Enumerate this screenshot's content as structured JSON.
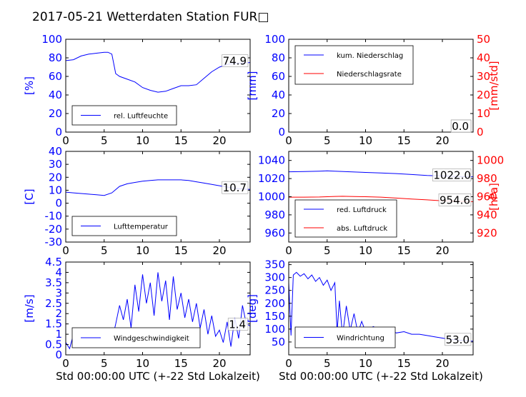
{
  "title": "2017-05-21 Wetterdaten Station FUR□",
  "colors": {
    "blue": "#0000ff",
    "red": "#ff0000",
    "frame": "#000000"
  },
  "chart_data": [
    {
      "id": "humidity",
      "type": "line",
      "xlim": [
        0,
        24
      ],
      "xticks": [
        0,
        5,
        10,
        15,
        20
      ],
      "ylim": [
        0,
        100
      ],
      "yticks": [
        0,
        20,
        40,
        60,
        80,
        100
      ],
      "ylabel": "[%]",
      "last_value": "74.9",
      "series": [
        {
          "name": "rel. Luftfeuchte",
          "color": "#0000ff",
          "x": [
            0,
            1,
            2,
            3,
            4,
            5,
            5.5,
            6,
            6.5,
            7,
            8,
            9,
            10,
            11,
            12,
            13,
            14,
            15,
            16,
            17,
            18,
            19,
            20,
            21,
            22,
            23,
            24
          ],
          "y": [
            77,
            78,
            82,
            84,
            85,
            86,
            86,
            84,
            63,
            60,
            57,
            54,
            48,
            45,
            43,
            44,
            47,
            50,
            50,
            51,
            58,
            65,
            70,
            73,
            74,
            74.5,
            74.9
          ]
        }
      ]
    },
    {
      "id": "precip",
      "type": "line",
      "xlim": [
        0,
        24
      ],
      "xticks": [
        0,
        5,
        10,
        15,
        20
      ],
      "ylim": [
        0,
        100
      ],
      "yticks": [
        0,
        20,
        40,
        60,
        80,
        100
      ],
      "ylabel": "[mm]",
      "y2lim": [
        0,
        50
      ],
      "y2ticks": [
        0,
        10,
        20,
        30,
        40,
        50
      ],
      "y2label": "[mm/std]",
      "last_value": "0.0",
      "last_value2": "0.0",
      "series": [
        {
          "name": "kum. Niederschlag",
          "color": "#0000ff",
          "axis": "left",
          "x": [
            0,
            24
          ],
          "y": [
            0,
            0
          ]
        },
        {
          "name": "Niederschlagsrate",
          "color": "#ff0000",
          "axis": "right",
          "x": [
            0,
            24
          ],
          "y": [
            0,
            0
          ]
        }
      ]
    },
    {
      "id": "temperature",
      "type": "line",
      "xlim": [
        0,
        24
      ],
      "xticks": [
        0,
        5,
        10,
        15,
        20
      ],
      "ylim": [
        -30,
        40
      ],
      "yticks": [
        -30,
        -20,
        -10,
        0,
        10,
        20,
        30,
        40
      ],
      "ylabel": "[C]",
      "last_value": "10.7",
      "series": [
        {
          "name": "Lufttemperatur",
          "color": "#0000ff",
          "x": [
            0,
            1,
            2,
            3,
            4,
            5,
            6,
            7,
            8,
            9,
            10,
            11,
            12,
            13,
            14,
            15,
            16,
            17,
            18,
            19,
            20,
            21,
            22,
            23,
            24
          ],
          "y": [
            8.5,
            8,
            7.5,
            7,
            6.5,
            6,
            8,
            13,
            15,
            16,
            17,
            17.5,
            18,
            18,
            18,
            18,
            17.5,
            16.5,
            15.5,
            14.5,
            13.5,
            12.5,
            11.5,
            11,
            10.7
          ]
        }
      ]
    },
    {
      "id": "pressure",
      "type": "line",
      "xlim": [
        0,
        24
      ],
      "xticks": [
        0,
        5,
        10,
        15,
        20
      ],
      "ylim": [
        950,
        1050
      ],
      "yticks": [
        960,
        980,
        1000,
        1020,
        1040
      ],
      "y2lim": [
        910,
        1010
      ],
      "y2ticks": [
        920,
        940,
        960,
        980,
        1000
      ],
      "y2label": "[hPa]",
      "last_value": "1022.0",
      "last_value2": "954.6",
      "series": [
        {
          "name": "red. Luftdruck",
          "color": "#0000ff",
          "axis": "left",
          "x": [
            0,
            2,
            4,
            5,
            6,
            8,
            10,
            12,
            14,
            16,
            18,
            20,
            22,
            24
          ],
          "y": [
            1027.5,
            1027.8,
            1028.2,
            1028.5,
            1028.2,
            1027.5,
            1026.8,
            1026.2,
            1025.5,
            1024.5,
            1023.5,
            1022.8,
            1022.3,
            1022.0
          ]
        },
        {
          "name": "abs. Luftdruck",
          "color": "#ff0000",
          "axis": "right",
          "x": [
            0,
            2,
            4,
            5,
            6,
            7,
            8,
            10,
            12,
            14,
            16,
            18,
            20,
            22,
            24
          ],
          "y": [
            959.5,
            959.5,
            959.7,
            960,
            960.3,
            960.5,
            960.3,
            960,
            959.5,
            958.5,
            957.5,
            956.5,
            955.5,
            955,
            954.6
          ]
        }
      ]
    },
    {
      "id": "windspeed",
      "type": "line",
      "xlim": [
        0,
        24
      ],
      "xticks": [
        0,
        5,
        10,
        15,
        20
      ],
      "ylim": [
        0,
        4.5
      ],
      "yticks": [
        0,
        0.5,
        1,
        1.5,
        2,
        2.5,
        3,
        3.5,
        4,
        4.5
      ],
      "ylabel": "[m/s]",
      "xlabel": "Std 00:00:00 UTC (+-22 Std Lokalzeit)",
      "last_value": "1.4",
      "series": [
        {
          "name": "Windgeschwindigkeit",
          "color": "#0000ff",
          "x": [
            0,
            0.5,
            1,
            1.5,
            2,
            3,
            4,
            5,
            6,
            6.5,
            7,
            7.5,
            8,
            8.5,
            9,
            9.5,
            10,
            10.5,
            11,
            11.5,
            12,
            12.5,
            13,
            13.5,
            14,
            14.5,
            15,
            15.5,
            16,
            16.5,
            17,
            17.5,
            18,
            18.5,
            19,
            19.5,
            20,
            20.5,
            21,
            21.5,
            22,
            22.5,
            23,
            23.5,
            24
          ],
          "y": [
            0.6,
            0.3,
            1.0,
            0.5,
            0.8,
            0.7,
            0.9,
            0.6,
            0.7,
            1.5,
            2.4,
            1.7,
            2.7,
            1.3,
            3.4,
            2.1,
            3.9,
            2.5,
            3.5,
            1.9,
            4.0,
            2.6,
            3.6,
            1.7,
            3.8,
            2.2,
            3.0,
            1.8,
            2.7,
            1.6,
            2.5,
            1.3,
            2.2,
            1.0,
            1.9,
            0.9,
            1.2,
            0.6,
            1.6,
            0.4,
            1.8,
            0.8,
            2.4,
            1.5,
            1.4
          ]
        }
      ]
    },
    {
      "id": "winddir",
      "type": "line",
      "xlim": [
        0,
        24
      ],
      "xticks": [
        0,
        5,
        10,
        15,
        20
      ],
      "ylim": [
        0,
        360
      ],
      "yticks": [
        50,
        100,
        150,
        200,
        250,
        300,
        350
      ],
      "ylabel": "[deg]",
      "xlabel": "Std 00:00:00 UTC (+-22 Std Lokalzeit)",
      "last_value": "53.0",
      "series": [
        {
          "name": "Windrichtung",
          "color": "#0000ff",
          "x": [
            0,
            0.3,
            0.6,
            1,
            1.5,
            2,
            2.5,
            3,
            3.5,
            4,
            4.5,
            5,
            5.5,
            6,
            6.3,
            6.6,
            7,
            7.5,
            8,
            8.5,
            9,
            9.5,
            10,
            11,
            12,
            13,
            14,
            15,
            16,
            17,
            18,
            19,
            20,
            21,
            22,
            23,
            24
          ],
          "y": [
            280,
            75,
            310,
            320,
            305,
            315,
            295,
            310,
            285,
            300,
            270,
            290,
            250,
            280,
            90,
            210,
            75,
            190,
            95,
            160,
            85,
            130,
            90,
            110,
            95,
            100,
            85,
            90,
            80,
            80,
            75,
            70,
            65,
            60,
            58,
            55,
            53
          ]
        }
      ]
    }
  ]
}
